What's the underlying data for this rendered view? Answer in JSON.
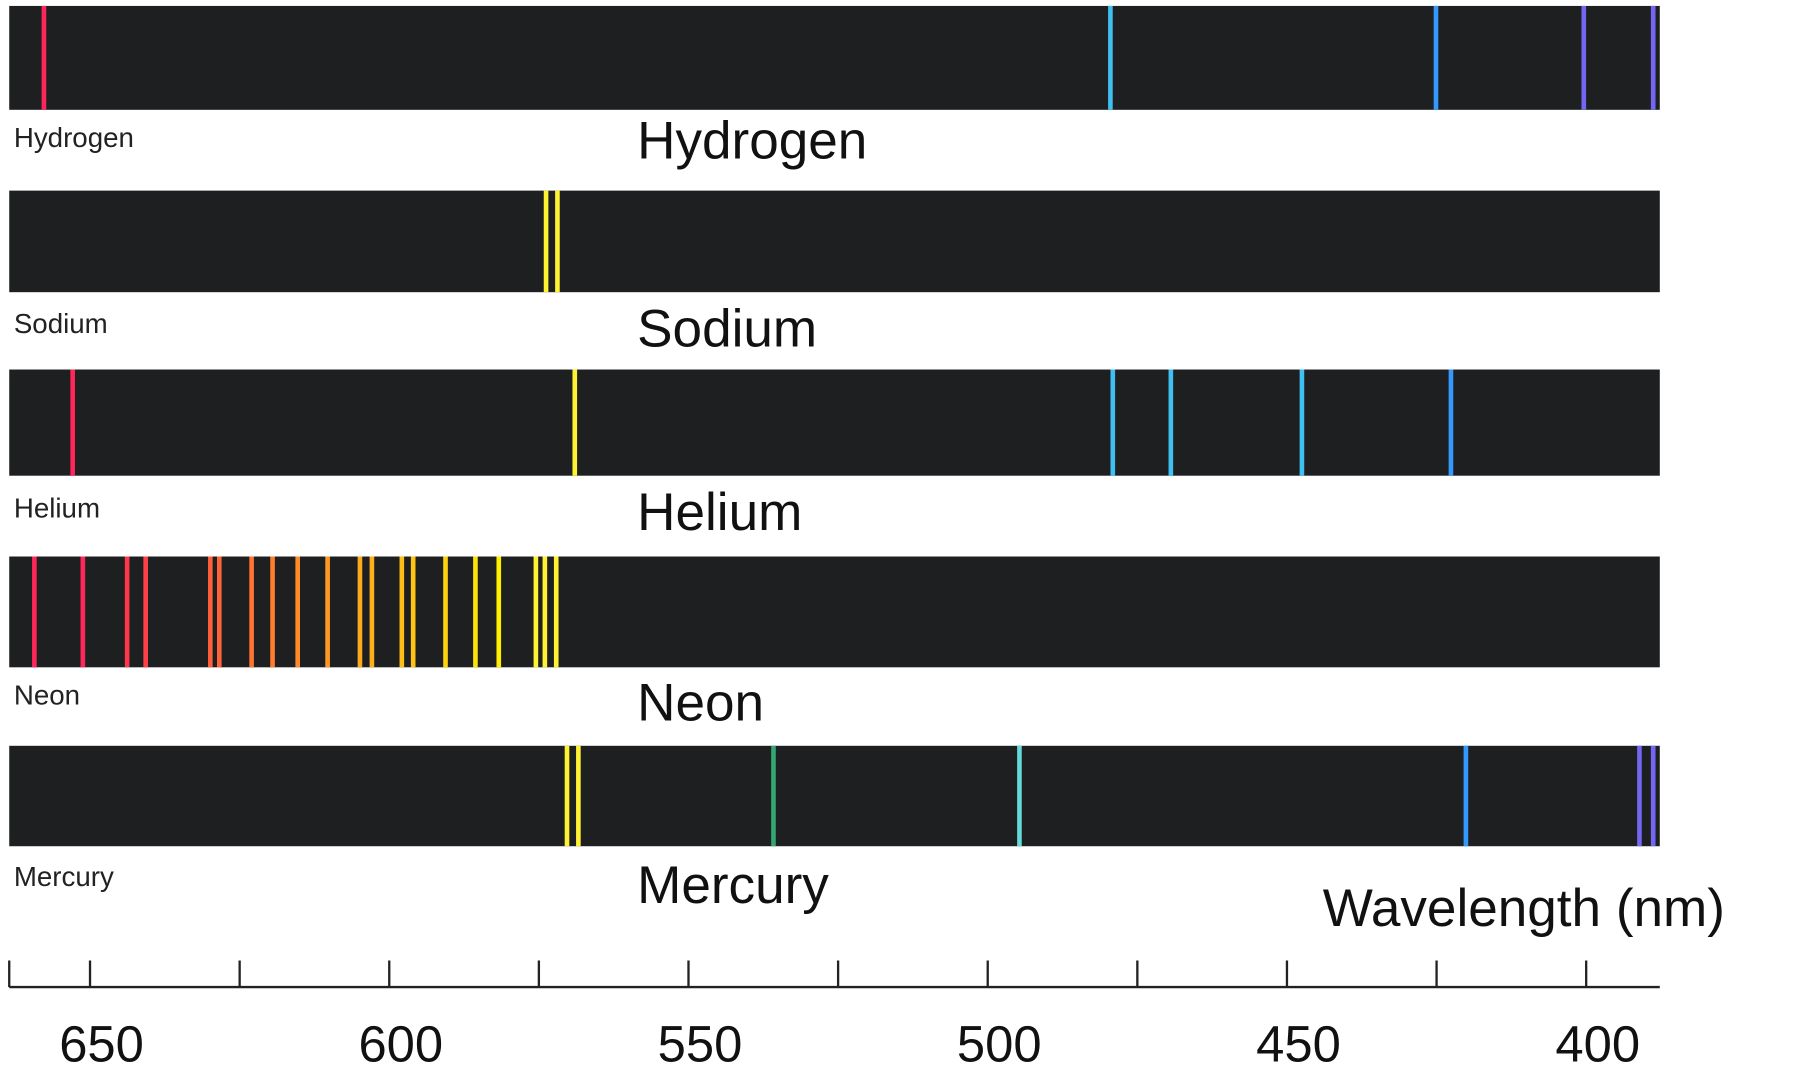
{
  "chart_data": {
    "type": "spectrum",
    "x_label": "Wavelength (nm)",
    "xlim": [
      663.5,
      387.7
    ],
    "xticks": [
      650,
      600,
      550,
      500,
      450,
      400
    ],
    "xminorticks": [
      625,
      575,
      525,
      475,
      425
    ],
    "series": [
      {
        "name": "Hydrogen",
        "values": [
          657.7,
          479.5,
          425.1,
          400.4,
          388.8
        ]
      },
      {
        "name": "Sodium",
        "values": [
          573.8,
          571.9
        ]
      },
      {
        "name": "Helium",
        "values": [
          652.9,
          569.0,
          479.1,
          469.4,
          447.5,
          422.6
        ]
      },
      {
        "name": "Neon",
        "values": [
          659.3,
          651.2,
          643.8,
          640.7,
          629.9,
          628.4,
          623.0,
          619.5,
          615.3,
          610.3,
          604.9,
          602.9,
          597.9,
          596.0,
          590.6,
          585.6,
          581.7,
          575.5,
          574.0,
          572.1
        ]
      },
      {
        "name": "Mercury",
        "values": [
          570.3,
          568.4,
          535.8,
          494.7,
          420.1,
          391.1,
          388.8
        ]
      }
    ]
  }
}
